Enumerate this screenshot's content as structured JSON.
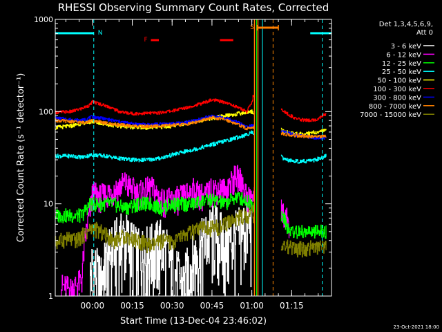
{
  "chart_data": {
    "type": "line",
    "title": "RHESSI Observing Summary Count Rates, Corrected",
    "xlabel": "Start Time (13-Dec-04 23:46:02)",
    "ylabel": "Corrected Count Rate (s⁻¹ detector⁻¹)",
    "yscale": "log",
    "ylim": [
      1,
      1000
    ],
    "xlim_minutes": [
      -14,
      90
    ],
    "y_ticks": [
      {
        "value": 1,
        "label": "1"
      },
      {
        "value": 10,
        "label": "10"
      },
      {
        "value": 100,
        "label": "100"
      },
      {
        "value": 1000,
        "label": "1000"
      }
    ],
    "x_ticks": [
      {
        "value": 0,
        "label": "00:00"
      },
      {
        "value": 15,
        "label": "00:15"
      },
      {
        "value": 30,
        "label": "00:30"
      },
      {
        "value": 45,
        "label": "00:45"
      },
      {
        "value": 60,
        "label": "01:00"
      },
      {
        "value": 75,
        "label": "01:15"
      }
    ],
    "legend_header": [
      "Det 1,3,4,5,6,9,",
      "Att 0"
    ],
    "legend_position": "top-right, outside plot",
    "footer_date": "23-Oct-2021 18:00",
    "flag_labels": {
      "night": "N",
      "flare": "F",
      "saa": "S"
    },
    "flags": {
      "night": [
        [
          -14,
          0.5
        ],
        [
          82,
          90
        ]
      ],
      "flare": [
        [
          22,
          25
        ],
        [
          48,
          53
        ]
      ],
      "saa": [
        [
          62,
          70
        ]
      ]
    },
    "vlines": [
      {
        "x": 0.5,
        "color": "#00ffff",
        "style": "dashed"
      },
      {
        "x": 64,
        "color": "#00ffff",
        "style": "solid"
      },
      {
        "x": 68,
        "color": "#ff8800",
        "style": "dashed"
      },
      {
        "x": 86.5,
        "color": "#00ffff",
        "style": "dashed"
      }
    ],
    "data_gap": [
      61,
      71
    ],
    "series": [
      {
        "name": "3 - 6 keV",
        "color": "#ffffff",
        "x": [
          -1,
          0,
          3,
          8,
          12,
          17,
          22,
          26,
          30,
          34,
          38,
          42,
          46,
          50,
          54,
          58,
          60
        ],
        "y": [
          1.5,
          2.2,
          1.4,
          3.5,
          4.5,
          2.8,
          3.2,
          3.8,
          2.0,
          1.3,
          2.5,
          4.0,
          5.5,
          3.5,
          4.5,
          6.0,
          6.0
        ]
      },
      {
        "name": "6 - 12 keV",
        "color": "#ff00ff",
        "x": [
          -12,
          -8,
          -4,
          -1,
          0,
          3,
          8,
          12,
          17,
          22,
          26,
          30,
          34,
          38,
          42,
          46,
          50,
          54,
          56,
          58,
          60,
          72,
          74
        ],
        "y": [
          1.3,
          1.2,
          1.5,
          8,
          13,
          12,
          14,
          17,
          13,
          15,
          11,
          11,
          12,
          14,
          12,
          15,
          14,
          20,
          18,
          12,
          12,
          8,
          6
        ]
      },
      {
        "name": "12 - 25 keV",
        "color": "#00ff00",
        "x": [
          -14,
          -8,
          -4,
          -1,
          0,
          3,
          8,
          12,
          17,
          22,
          26,
          30,
          34,
          38,
          42,
          46,
          50,
          54,
          58,
          60,
          72,
          74,
          80,
          88
        ],
        "y": [
          7.5,
          7.5,
          7.5,
          10,
          10,
          10,
          10,
          9,
          10,
          10,
          9,
          10,
          10,
          10,
          11,
          11,
          10,
          12,
          11,
          10,
          7,
          5,
          5,
          5
        ]
      },
      {
        "name": "25 - 50 keV",
        "color": "#00ffff",
        "x": [
          -14,
          -8,
          -4,
          0,
          5,
          10,
          15,
          20,
          25,
          30,
          35,
          40,
          45,
          50,
          55,
          58,
          60,
          72,
          76,
          80,
          84,
          88
        ],
        "y": [
          33,
          33,
          32,
          34,
          33,
          31,
          30,
          30,
          31,
          34,
          37,
          40,
          44,
          48,
          53,
          56,
          60,
          30,
          29,
          29,
          30,
          33
        ]
      },
      {
        "name": "50 - 100 keV",
        "color": "#ffff00",
        "x": [
          -14,
          -8,
          -4,
          0,
          2,
          6,
          10,
          15,
          20,
          25,
          30,
          35,
          40,
          45,
          50,
          55,
          58,
          60,
          72,
          76,
          80,
          84,
          88
        ],
        "y": [
          67,
          70,
          75,
          78,
          76,
          72,
          70,
          68,
          67,
          68,
          70,
          75,
          80,
          85,
          90,
          95,
          98,
          100,
          60,
          58,
          57,
          60,
          62
        ]
      },
      {
        "name": "100 - 300 keV",
        "color": "#ff0000",
        "x": [
          -14,
          -8,
          -4,
          -1,
          0,
          2,
          6,
          10,
          15,
          20,
          25,
          30,
          35,
          40,
          45,
          50,
          55,
          58,
          60,
          60.5,
          72,
          76,
          80,
          84,
          88
        ],
        "y": [
          98,
          100,
          108,
          118,
          128,
          123,
          113,
          100,
          95,
          96,
          97,
          102,
          110,
          120,
          134,
          126,
          110,
          100,
          125,
          150,
          100,
          85,
          80,
          82,
          95
        ]
      },
      {
        "name": "300 - 800 keV",
        "color": "#0000ff",
        "x": [
          -14,
          -8,
          -4,
          0,
          2,
          6,
          10,
          15,
          20,
          25,
          30,
          35,
          40,
          45,
          50,
          55,
          58,
          60,
          72,
          76,
          80,
          84,
          88
        ],
        "y": [
          85,
          82,
          80,
          88,
          86,
          82,
          78,
          74,
          72,
          73,
          74,
          76,
          82,
          90,
          85,
          76,
          68,
          72,
          60,
          56,
          54,
          52,
          52
        ]
      },
      {
        "name": "800 - 7000 keV",
        "color": "#ff8000",
        "x": [
          -14,
          -8,
          -4,
          0,
          2,
          6,
          10,
          15,
          20,
          25,
          30,
          35,
          40,
          45,
          50,
          55,
          58,
          60,
          72,
          76,
          80,
          84,
          88
        ],
        "y": [
          80,
          78,
          76,
          80,
          78,
          74,
          72,
          70,
          69,
          70,
          71,
          73,
          78,
          86,
          82,
          72,
          65,
          68,
          57,
          55,
          54,
          53,
          54
        ]
      },
      {
        "name": "7000 - 15000 keV",
        "color": "#808000",
        "x": [
          -14,
          -10,
          -6,
          -2,
          0,
          3,
          8,
          12,
          17,
          22,
          26,
          30,
          34,
          38,
          42,
          46,
          50,
          54,
          58,
          60,
          72,
          76,
          80,
          84,
          88
        ],
        "y": [
          3.8,
          4.2,
          4.0,
          5.0,
          5.5,
          5.0,
          4.0,
          4.5,
          4.0,
          3.5,
          4.0,
          3.8,
          4.5,
          5.0,
          5.5,
          5.5,
          6.0,
          7.0,
          7.5,
          8.0,
          3.5,
          3.2,
          3.3,
          3.4,
          3.3
        ]
      }
    ]
  }
}
